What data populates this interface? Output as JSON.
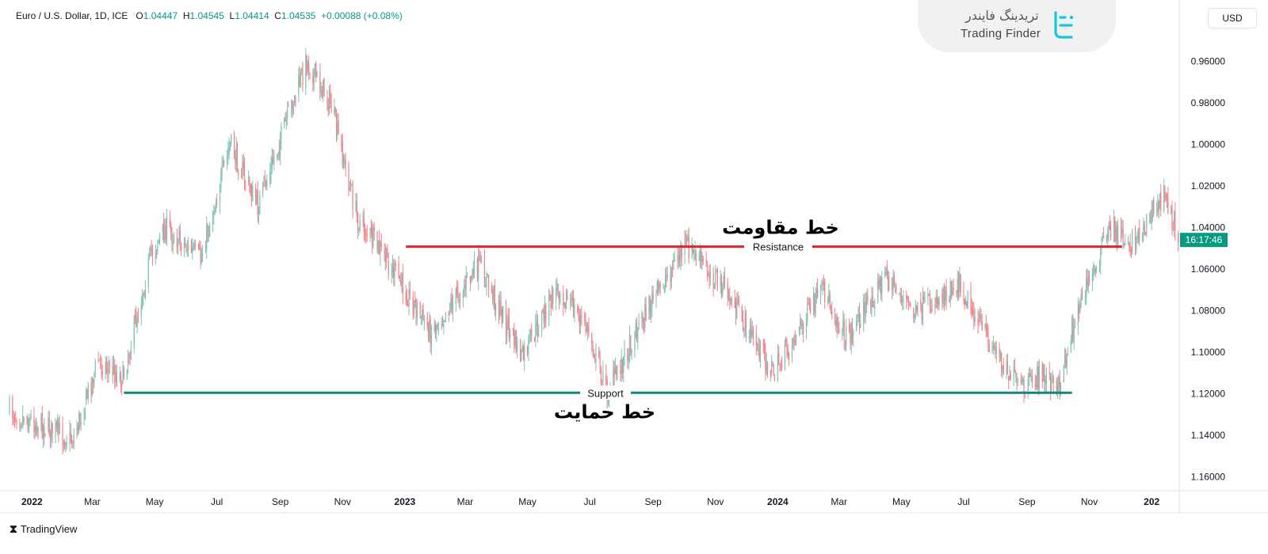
{
  "header": {
    "symbol": "Euro / U.S. Dollar, 1D, ICE",
    "o_label": "O",
    "o_value": "1.04447",
    "h_label": "H",
    "h_value": "1.04545",
    "l_label": "L",
    "l_value": "1.04414",
    "c_label": "C",
    "c_value": "1.04535",
    "change": "+0.00088 (+0.08%)"
  },
  "currency_button": "USD",
  "logo": {
    "persian": "تریدینگ فایندر",
    "english": "Trading Finder"
  },
  "footer": {
    "brand": "TradingView"
  },
  "colors": {
    "up": "#089981",
    "down": "#f23645",
    "candle_up": "#7ec3b6",
    "candle_down": "#f0828a",
    "resistance": "#e0242f",
    "support": "#0b8a76"
  },
  "chart_data": {
    "type": "candlestick",
    "title": "",
    "y_axis_inverted": true,
    "y_ticks": [
      "0.96000",
      "0.98000",
      "1.00000",
      "1.02000",
      "1.04000",
      "1.06000",
      "1.08000",
      "1.10000",
      "1.12000",
      "1.14000",
      "1.16000"
    ],
    "y_tick_values": [
      0.96,
      0.98,
      1.0,
      1.02,
      1.04,
      1.06,
      1.08,
      1.1,
      1.12,
      1.14,
      1.16
    ],
    "ylim": [
      0.9458,
      1.1666
    ],
    "x_ticks": [
      "2022",
      "Mar",
      "May",
      "Jul",
      "Sep",
      "Nov",
      "2023",
      "Mar",
      "May",
      "Jul",
      "Sep",
      "Nov",
      "2024",
      "Mar",
      "May",
      "Jul",
      "Sep",
      "Nov",
      "202"
    ],
    "x_tick_dates": [
      "2022-01-01",
      "2022-03-01",
      "2022-05-01",
      "2022-07-01",
      "2022-09-01",
      "2022-11-01",
      "2023-01-01",
      "2023-03-01",
      "2023-05-01",
      "2023-07-01",
      "2023-09-01",
      "2023-11-01",
      "2024-01-01",
      "2024-03-01",
      "2024-05-01",
      "2024-07-01",
      "2024-09-01",
      "2024-11-01",
      "2025-01-01"
    ],
    "x_bold": [
      "2022",
      "2023",
      "2024",
      "202"
    ],
    "price_label": "16:17:46",
    "price_label_value": 1.046,
    "series": [
      {
        "name": "EUR/USD",
        "anchors": [
          [
            "2021-12-10",
            1.128
          ],
          [
            "2022-01-10",
            1.135
          ],
          [
            "2022-02-10",
            1.142
          ],
          [
            "2022-03-07",
            1.104
          ],
          [
            "2022-03-31",
            1.112
          ],
          [
            "2022-04-28",
            1.052
          ],
          [
            "2022-05-12",
            1.04
          ],
          [
            "2022-06-15",
            1.055
          ],
          [
            "2022-07-14",
            1.0
          ],
          [
            "2022-08-10",
            1.03
          ],
          [
            "2022-09-27",
            0.96
          ],
          [
            "2022-10-20",
            0.98
          ],
          [
            "2022-11-15",
            1.035
          ],
          [
            "2022-12-20",
            1.06
          ],
          [
            "2023-01-26",
            1.09
          ],
          [
            "2023-03-15",
            1.058
          ],
          [
            "2023-04-26",
            1.103
          ],
          [
            "2023-05-31",
            1.068
          ],
          [
            "2023-06-30",
            1.09
          ],
          [
            "2023-07-18",
            1.12
          ],
          [
            "2023-08-20",
            1.085
          ],
          [
            "2023-10-03",
            1.048
          ],
          [
            "2023-11-10",
            1.07
          ],
          [
            "2023-12-28",
            1.11
          ],
          [
            "2024-01-30",
            1.082
          ],
          [
            "2024-02-15",
            1.07
          ],
          [
            "2024-03-08",
            1.093
          ],
          [
            "2024-04-16",
            1.063
          ],
          [
            "2024-05-15",
            1.082
          ],
          [
            "2024-06-26",
            1.066
          ],
          [
            "2024-07-20",
            1.09
          ],
          [
            "2024-08-26",
            1.118
          ],
          [
            "2024-09-20",
            1.11
          ],
          [
            "2024-09-30",
            1.12
          ],
          [
            "2024-10-20",
            1.08
          ],
          [
            "2024-11-22",
            1.04
          ],
          [
            "2024-12-12",
            1.048
          ],
          [
            "2025-01-13",
            1.025
          ],
          [
            "2025-01-28",
            1.044
          ]
        ]
      }
    ],
    "annotations": [
      {
        "name": "resistance",
        "label": "Resistance",
        "level": 1.0492,
        "start": "2023-01-02",
        "end": "2024-12-03",
        "persian": "خط مقاومت"
      },
      {
        "name": "support",
        "label": "Support",
        "level": 1.1195,
        "start": "2022-04-01",
        "end": "2024-10-15",
        "persian": "خط حمایت"
      }
    ]
  }
}
